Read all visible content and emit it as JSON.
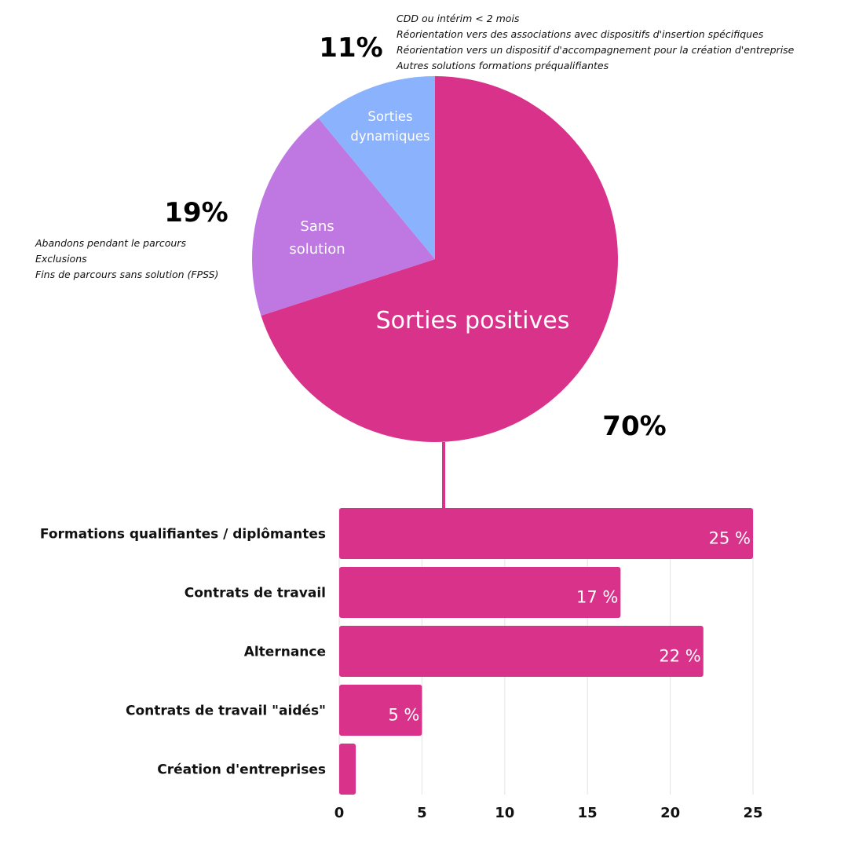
{
  "chart_data": [
    {
      "type": "pie",
      "slices": [
        {
          "key": "positive",
          "label": "Sorties positives",
          "value": 70,
          "percent_label": "70%",
          "color": "#d9328a",
          "notes": []
        },
        {
          "key": "sans",
          "label_lines": [
            "Sans",
            "solution"
          ],
          "value": 19,
          "percent_label": "19%",
          "color": "#bf77e2",
          "notes": [
            "Abandons pendant le parcours",
            "Exclusions",
            "Fins de parcours sans solution (FPSS)"
          ]
        },
        {
          "key": "dynamiques",
          "label_lines": [
            "Sorties",
            "dynamiques"
          ],
          "value": 11,
          "percent_label": "11%",
          "color": "#8ab2fd",
          "notes": [
            "CDD ou intérim < 2 mois",
            "Réorientation vers des associations avec dispositifs d'insertion spécifiques",
            "Réorientation vers un dispositif d'accompagnement pour la création d'entreprise",
            "Autres solutions formations préqualifiantes"
          ]
        }
      ]
    },
    {
      "type": "bar",
      "orientation": "horizontal",
      "categories": [
        "Formations qualifiantes / diplômantes",
        "Contrats de travail",
        "Alternance",
        "Contrats de travail \"aidés\"",
        "Création d'entreprises"
      ],
      "values": [
        25,
        17,
        22,
        5,
        1
      ],
      "value_labels": [
        "25 %",
        "17 %",
        "22 %",
        "5 %",
        ""
      ],
      "xlim": [
        0,
        25
      ],
      "xticks": [
        0,
        5,
        10,
        15,
        20,
        25
      ],
      "grid": true,
      "color": "#d9328a"
    }
  ]
}
